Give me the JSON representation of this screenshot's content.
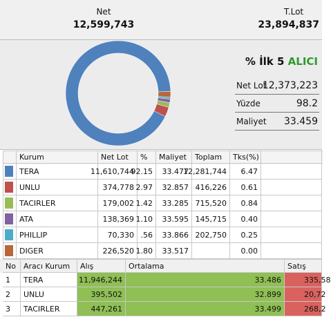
{
  "header": {
    "net_label": "Net",
    "net_value": "12,599,743",
    "tlot_label": "T.Lot",
    "tlot_value": "23,894,837"
  },
  "summary": {
    "title": "% İlk 5",
    "title_accent": "ALICI",
    "rows": [
      [
        "Net Lot",
        "12,373,223"
      ],
      [
        "Yüzde",
        "98.2"
      ],
      [
        "Maliyet",
        "33.459"
      ]
    ]
  },
  "brokers": {
    "columns": [
      "Kurum",
      "Net Lot",
      "%",
      "Maliyet",
      "Toplam",
      "Tks(%)"
    ],
    "colors": [
      "#4f81bd",
      "#c0504d",
      "#9bbb59",
      "#8064a2",
      "#4bacc6",
      "#b8673a"
    ],
    "rows": [
      [
        "TERA",
        "11,610,744",
        "92.15",
        "33.477",
        "12,281,744",
        "6.47"
      ],
      [
        "UNLU",
        "374,778",
        "2.97",
        "32.857",
        "416,226",
        "0.61"
      ],
      [
        "TACIRLER",
        "179,002",
        "1.42",
        "33.285",
        "715,520",
        "0.84"
      ],
      [
        "ATA",
        "138,369",
        "1.10",
        "33.595",
        "145,715",
        "0.40"
      ],
      [
        "PHILLIP",
        "70,330",
        ".56",
        "33.866",
        "202,750",
        "0.25"
      ],
      [
        "DIGER",
        "226,520",
        "1.80",
        "33.517",
        null,
        "0.00"
      ]
    ]
  },
  "trades": {
    "columns": [
      "No",
      "Aracı Kurum",
      "Alış",
      "Ortalama",
      "Satış"
    ],
    "rows": [
      [
        "1",
        "TERA",
        "11,946,244",
        "33.486",
        "335,58"
      ],
      [
        "2",
        "UNLU",
        "395,502",
        "32.899",
        "20,72"
      ],
      [
        "3",
        "TACIRLER",
        "447,261",
        "33.499",
        "268,2"
      ]
    ]
  }
}
